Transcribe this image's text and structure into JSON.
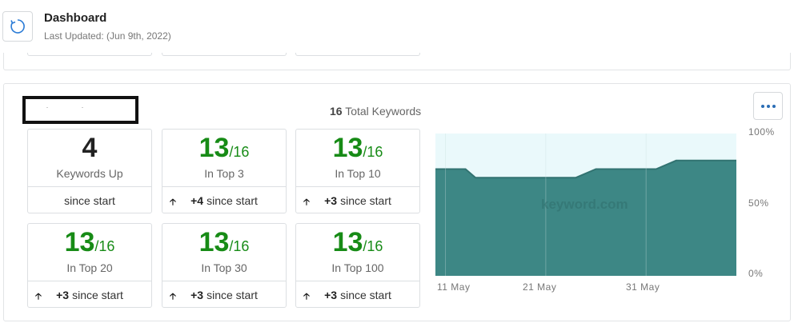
{
  "header": {
    "title": "Dashboard",
    "last_updated": "Last Updated: (Jun 9th, 2022)"
  },
  "panel": {
    "total_count": "16",
    "total_label": " Total Keywords",
    "cards": [
      {
        "value": "4",
        "denominator": "",
        "label": "Keywords Up",
        "delta": "",
        "footer": "since start",
        "arrow": false
      },
      {
        "value": "13",
        "denominator": "/16",
        "label": "In Top 3",
        "delta": "+4",
        "footer": "since start",
        "arrow": true
      },
      {
        "value": "13",
        "denominator": "/16",
        "label": "In Top 10",
        "delta": "+3",
        "footer": "since start",
        "arrow": true
      },
      {
        "value": "13",
        "denominator": "/16",
        "label": "In Top 20",
        "delta": "+3",
        "footer": "since start",
        "arrow": true
      },
      {
        "value": "13",
        "denominator": "/16",
        "label": "In Top 30",
        "delta": "+3",
        "footer": "since start",
        "arrow": true
      },
      {
        "value": "13",
        "denominator": "/16",
        "label": "In Top 100",
        "delta": "+3",
        "footer": "since start",
        "arrow": true
      }
    ]
  },
  "chart_data": {
    "type": "area",
    "title": "",
    "watermark": "keyword.com",
    "y_ticks": [
      "100%",
      "50%",
      "0%"
    ],
    "x_ticks": [
      "11 May",
      "21 May",
      "31 May"
    ],
    "ylim": [
      0,
      100
    ],
    "series": [
      {
        "x": [
          "2022-05-10",
          "2022-05-12",
          "2022-05-13",
          "2022-05-14",
          "2022-05-16",
          "2022-05-18",
          "2022-05-20",
          "2022-05-22",
          "2022-05-24",
          "2022-05-26",
          "2022-05-28",
          "2022-05-30",
          "2022-06-01",
          "2022-06-03",
          "2022-06-05",
          "2022-06-07",
          "2022-06-09"
        ],
        "values": [
          75,
          75,
          75,
          69,
          69,
          69,
          69,
          69,
          69,
          75,
          75,
          75,
          75,
          81,
          81,
          81,
          81
        ]
      }
    ],
    "colors": {
      "fill": "#3d8785",
      "line": "#327371",
      "background": "#eaf9fb",
      "grid": "#c9dede"
    }
  }
}
